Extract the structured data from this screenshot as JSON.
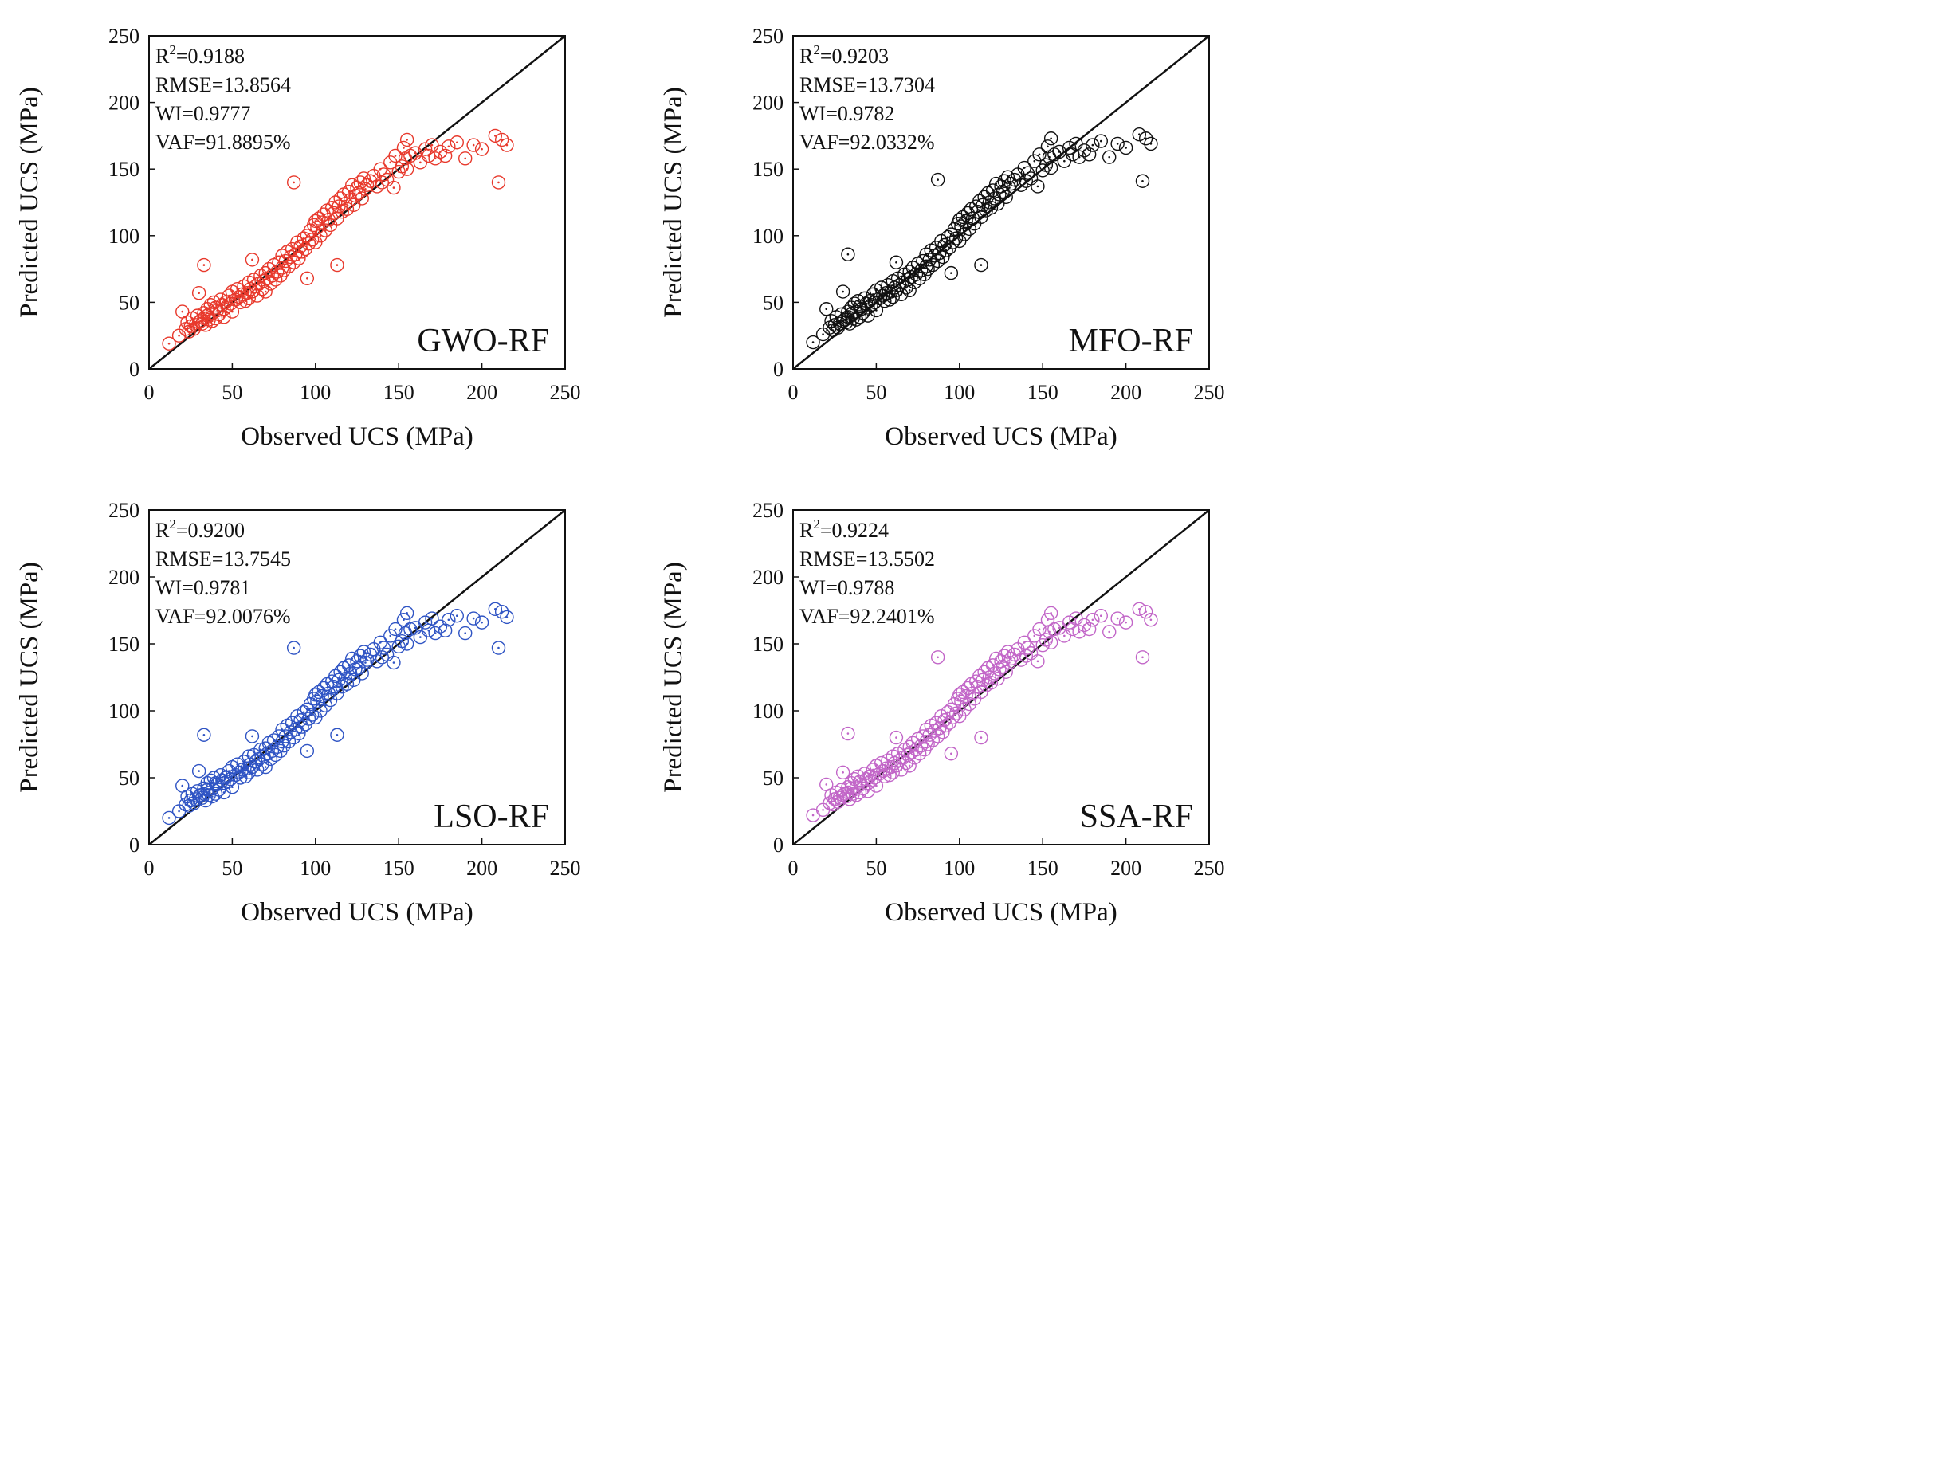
{
  "chart_data": [
    {
      "type": "scatter",
      "model": "GWO-RF",
      "color": "#e8392c",
      "xlabel": "Observed UCS (MPa)",
      "ylabel": "Predicted UCS (MPa)",
      "xlim": [
        0,
        250
      ],
      "ylim": [
        0,
        250
      ],
      "xticks": [
        "0",
        "50",
        "100",
        "150",
        "200",
        "250"
      ],
      "yticks": [
        "0",
        "50",
        "100",
        "150",
        "200",
        "250"
      ],
      "reference_line": "y = x",
      "stats": {
        "r2_prefix": "R",
        "r2_exp": "2",
        "r2_value": "=0.9188",
        "rmse": "RMSE=13.8564",
        "wi": "WI=0.9777",
        "vaf": "VAF=91.8895%"
      },
      "x": [
        12,
        18,
        20,
        22,
        23,
        24,
        25,
        26,
        27,
        28,
        29,
        30,
        30,
        31,
        32,
        33,
        33,
        34,
        35,
        35,
        36,
        37,
        38,
        38,
        39,
        40,
        40,
        41,
        42,
        43,
        44,
        45,
        45,
        46,
        47,
        48,
        49,
        50,
        50,
        52,
        53,
        54,
        55,
        56,
        57,
        58,
        59,
        60,
        60,
        61,
        62,
        63,
        64,
        65,
        66,
        67,
        68,
        69,
        70,
        70,
        71,
        72,
        73,
        74,
        75,
        76,
        77,
        78,
        79,
        80,
        80,
        81,
        82,
        83,
        84,
        85,
        86,
        87,
        88,
        89,
        90,
        91,
        92,
        93,
        94,
        95,
        96,
        97,
        98,
        99,
        100,
        100,
        101,
        102,
        103,
        104,
        105,
        106,
        107,
        108,
        109,
        110,
        111,
        112,
        113,
        114,
        115,
        116,
        117,
        118,
        119,
        120,
        121,
        122,
        123,
        124,
        125,
        126,
        127,
        128,
        129,
        130,
        131,
        133,
        135,
        137,
        139,
        140,
        141,
        143,
        145,
        147,
        148,
        150,
        152,
        153,
        154,
        155,
        155,
        157,
        160,
        163,
        166,
        168,
        170,
        172,
        175,
        178,
        180,
        185,
        190,
        195,
        200,
        208,
        210,
        212,
        215,
        33,
        87,
        113,
        95,
        62
      ],
      "y": [
        19,
        25,
        43,
        30,
        35,
        28,
        32,
        38,
        30,
        33,
        40,
        35,
        57,
        36,
        34,
        38,
        42,
        33,
        45,
        40,
        37,
        48,
        42,
        36,
        50,
        46,
        38,
        44,
        41,
        52,
        48,
        45,
        39,
        50,
        47,
        55,
        49,
        58,
        43,
        52,
        60,
        54,
        50,
        56,
        62,
        51,
        57,
        65,
        53,
        60,
        58,
        67,
        62,
        55,
        64,
        70,
        60,
        66,
        72,
        58,
        68,
        75,
        64,
        70,
        78,
        67,
        73,
        80,
        70,
        76,
        85,
        74,
        81,
        88,
        77,
        84,
        90,
        80,
        86,
        95,
        83,
        92,
        88,
        98,
        90,
        100,
        94,
        104,
        97,
        108,
        111,
        95,
        106,
        113,
        100,
        110,
        116,
        104,
        119,
        112,
        108,
        121,
        117,
        125,
        113,
        122,
        128,
        118,
        131,
        124,
        120,
        133,
        127,
        138,
        123,
        130,
        136,
        132,
        140,
        128,
        143,
        135,
        138,
        141,
        145,
        137,
        150,
        140,
        146,
        142,
        155,
        136,
        160,
        148,
        152,
        166,
        158,
        172,
        150,
        160,
        162,
        155,
        165,
        160,
        168,
        158,
        163,
        160,
        167,
        170,
        158,
        168,
        165,
        175,
        140,
        172,
        168,
        78,
        140,
        78,
        68,
        82
      ]
    },
    {
      "type": "scatter",
      "model": "MFO-RF",
      "color": "#111111",
      "xlabel": "Observed UCS (MPa)",
      "ylabel": "Predicted UCS (MPa)",
      "xlim": [
        0,
        250
      ],
      "ylim": [
        0,
        250
      ],
      "xticks": [
        "0",
        "50",
        "100",
        "150",
        "200",
        "250"
      ],
      "yticks": [
        "0",
        "50",
        "100",
        "150",
        "200",
        "250"
      ],
      "reference_line": "y = x",
      "stats": {
        "r2_prefix": "R",
        "r2_exp": "2",
        "r2_value": "=0.9203",
        "rmse": "RMSE=13.7304",
        "wi": "WI=0.9782",
        "vaf": "VAF=92.0332%"
      },
      "x": [
        12,
        18,
        20,
        22,
        23,
        24,
        25,
        26,
        27,
        28,
        29,
        30,
        30,
        31,
        32,
        33,
        33,
        34,
        35,
        35,
        36,
        37,
        38,
        38,
        39,
        40,
        40,
        41,
        42,
        43,
        44,
        45,
        45,
        46,
        47,
        48,
        49,
        50,
        50,
        52,
        53,
        54,
        55,
        56,
        57,
        58,
        59,
        60,
        60,
        61,
        62,
        63,
        64,
        65,
        66,
        67,
        68,
        69,
        70,
        70,
        71,
        72,
        73,
        74,
        75,
        76,
        77,
        78,
        79,
        80,
        80,
        81,
        82,
        83,
        84,
        85,
        86,
        87,
        88,
        89,
        90,
        91,
        92,
        93,
        94,
        95,
        96,
        97,
        98,
        99,
        100,
        100,
        101,
        102,
        103,
        104,
        105,
        106,
        107,
        108,
        109,
        110,
        111,
        112,
        113,
        114,
        115,
        116,
        117,
        118,
        119,
        120,
        121,
        122,
        123,
        124,
        125,
        126,
        127,
        128,
        129,
        130,
        131,
        133,
        135,
        137,
        139,
        140,
        141,
        143,
        145,
        147,
        148,
        150,
        152,
        153,
        154,
        155,
        155,
        157,
        160,
        163,
        166,
        168,
        170,
        172,
        175,
        178,
        180,
        185,
        190,
        195,
        200,
        208,
        210,
        212,
        215,
        33,
        87,
        113,
        95,
        62
      ],
      "y": [
        20,
        26,
        45,
        31,
        36,
        29,
        33,
        39,
        31,
        34,
        41,
        36,
        58,
        37,
        35,
        39,
        43,
        34,
        46,
        41,
        38,
        49,
        43,
        37,
        51,
        47,
        39,
        45,
        42,
        53,
        49,
        46,
        40,
        51,
        48,
        56,
        50,
        59,
        44,
        53,
        61,
        55,
        51,
        57,
        63,
        52,
        58,
        66,
        54,
        61,
        59,
        68,
        63,
        56,
        65,
        71,
        61,
        67,
        73,
        59,
        69,
        76,
        65,
        71,
        79,
        68,
        74,
        81,
        71,
        77,
        86,
        75,
        82,
        89,
        78,
        85,
        91,
        81,
        87,
        96,
        84,
        93,
        89,
        99,
        91,
        101,
        95,
        105,
        98,
        109,
        112,
        96,
        107,
        114,
        101,
        111,
        117,
        105,
        120,
        113,
        109,
        122,
        118,
        126,
        114,
        123,
        129,
        119,
        132,
        125,
        121,
        134,
        128,
        139,
        124,
        131,
        137,
        133,
        141,
        129,
        144,
        136,
        139,
        142,
        146,
        138,
        151,
        141,
        147,
        143,
        156,
        137,
        161,
        149,
        153,
        167,
        159,
        173,
        151,
        161,
        163,
        156,
        166,
        161,
        169,
        159,
        164,
        161,
        168,
        171,
        159,
        169,
        166,
        176,
        141,
        173,
        169,
        86,
        142,
        78,
        72,
        80
      ]
    },
    {
      "type": "scatter",
      "model": "LSO-RF",
      "color": "#2f54c4",
      "xlabel": "Observed UCS (MPa)",
      "ylabel": "Predicted UCS (MPa)",
      "xlim": [
        0,
        250
      ],
      "ylim": [
        0,
        250
      ],
      "xticks": [
        "0",
        "50",
        "100",
        "150",
        "200",
        "250"
      ],
      "yticks": [
        "0",
        "50",
        "100",
        "150",
        "200",
        "250"
      ],
      "reference_line": "y = x",
      "stats": {
        "r2_prefix": "R",
        "r2_exp": "2",
        "r2_value": "=0.9200",
        "rmse": "RMSE=13.7545",
        "wi": "WI=0.9781",
        "vaf": "VAF=92.0076%"
      },
      "x": [
        12,
        18,
        20,
        22,
        23,
        24,
        25,
        26,
        27,
        28,
        29,
        30,
        30,
        31,
        32,
        33,
        33,
        34,
        35,
        35,
        36,
        37,
        38,
        38,
        39,
        40,
        40,
        41,
        42,
        43,
        44,
        45,
        45,
        46,
        47,
        48,
        49,
        50,
        50,
        52,
        53,
        54,
        55,
        56,
        57,
        58,
        59,
        60,
        60,
        61,
        62,
        63,
        64,
        65,
        66,
        67,
        68,
        69,
        70,
        70,
        71,
        72,
        73,
        74,
        75,
        76,
        77,
        78,
        79,
        80,
        80,
        81,
        82,
        83,
        84,
        85,
        86,
        87,
        88,
        89,
        90,
        91,
        92,
        93,
        94,
        95,
        96,
        97,
        98,
        99,
        100,
        100,
        101,
        102,
        103,
        104,
        105,
        106,
        107,
        108,
        109,
        110,
        111,
        112,
        113,
        114,
        115,
        116,
        117,
        118,
        119,
        120,
        121,
        122,
        123,
        124,
        125,
        126,
        127,
        128,
        129,
        130,
        131,
        133,
        135,
        137,
        139,
        140,
        141,
        143,
        145,
        147,
        148,
        150,
        152,
        153,
        154,
        155,
        155,
        157,
        160,
        163,
        166,
        168,
        170,
        172,
        175,
        178,
        180,
        185,
        190,
        195,
        200,
        208,
        210,
        212,
        215,
        33,
        87,
        113,
        95,
        62
      ],
      "y": [
        20,
        25,
        44,
        30,
        36,
        29,
        33,
        38,
        31,
        34,
        40,
        36,
        55,
        37,
        35,
        38,
        42,
        33,
        46,
        41,
        37,
        48,
        42,
        36,
        50,
        46,
        38,
        45,
        41,
        52,
        48,
        46,
        39,
        50,
        47,
        55,
        49,
        58,
        43,
        52,
        60,
        54,
        50,
        56,
        62,
        51,
        57,
        66,
        54,
        60,
        58,
        67,
        62,
        56,
        64,
        71,
        60,
        66,
        72,
        58,
        68,
        76,
        64,
        70,
        78,
        67,
        73,
        81,
        70,
        77,
        86,
        74,
        81,
        89,
        77,
        84,
        91,
        80,
        86,
        96,
        83,
        93,
        88,
        99,
        90,
        101,
        94,
        105,
        97,
        109,
        112,
        95,
        107,
        114,
        100,
        111,
        117,
        104,
        120,
        113,
        108,
        122,
        118,
        126,
        113,
        123,
        129,
        118,
        132,
        124,
        120,
        134,
        128,
        139,
        123,
        131,
        137,
        132,
        141,
        128,
        144,
        136,
        138,
        142,
        146,
        137,
        151,
        140,
        147,
        142,
        156,
        136,
        161,
        148,
        152,
        168,
        158,
        173,
        150,
        161,
        162,
        155,
        166,
        160,
        169,
        158,
        163,
        160,
        168,
        171,
        158,
        169,
        166,
        176,
        147,
        174,
        170,
        82,
        147,
        82,
        70,
        81
      ]
    },
    {
      "type": "scatter",
      "model": "SSA-RF",
      "color": "#c266c8",
      "xlabel": "Observed UCS (MPa)",
      "ylabel": "Predicted UCS (MPa)",
      "xlim": [
        0,
        250
      ],
      "ylim": [
        0,
        250
      ],
      "xticks": [
        "0",
        "50",
        "100",
        "150",
        "200",
        "250"
      ],
      "yticks": [
        "0",
        "50",
        "100",
        "150",
        "200",
        "250"
      ],
      "reference_line": "y = x",
      "stats": {
        "r2_prefix": "R",
        "r2_exp": "2",
        "r2_value": "=0.9224",
        "rmse": "RMSE=13.5502",
        "wi": "WI=0.9788",
        "vaf": "VAF=92.2401%"
      },
      "x": [
        12,
        18,
        20,
        22,
        23,
        24,
        25,
        26,
        27,
        28,
        29,
        30,
        30,
        31,
        32,
        33,
        33,
        34,
        35,
        35,
        36,
        37,
        38,
        38,
        39,
        40,
        40,
        41,
        42,
        43,
        44,
        45,
        45,
        46,
        47,
        48,
        49,
        50,
        50,
        52,
        53,
        54,
        55,
        56,
        57,
        58,
        59,
        60,
        60,
        61,
        62,
        63,
        64,
        65,
        66,
        67,
        68,
        69,
        70,
        70,
        71,
        72,
        73,
        74,
        75,
        76,
        77,
        78,
        79,
        80,
        80,
        81,
        82,
        83,
        84,
        85,
        86,
        87,
        88,
        89,
        90,
        91,
        92,
        93,
        94,
        95,
        96,
        97,
        98,
        99,
        100,
        100,
        101,
        102,
        103,
        104,
        105,
        106,
        107,
        108,
        109,
        110,
        111,
        112,
        113,
        114,
        115,
        116,
        117,
        118,
        119,
        120,
        121,
        122,
        123,
        124,
        125,
        126,
        127,
        128,
        129,
        130,
        131,
        133,
        135,
        137,
        139,
        140,
        141,
        143,
        145,
        147,
        148,
        150,
        152,
        153,
        154,
        155,
        155,
        157,
        160,
        163,
        166,
        168,
        170,
        172,
        175,
        178,
        180,
        185,
        190,
        195,
        200,
        208,
        210,
        212,
        215,
        33,
        87,
        113,
        95,
        62
      ],
      "y": [
        22,
        26,
        45,
        31,
        37,
        30,
        34,
        39,
        32,
        35,
        41,
        37,
        54,
        38,
        36,
        39,
        43,
        34,
        46,
        42,
        38,
        49,
        43,
        37,
        51,
        47,
        39,
        45,
        42,
        53,
        49,
        46,
        40,
        51,
        48,
        56,
        50,
        59,
        44,
        53,
        61,
        55,
        51,
        57,
        63,
        52,
        58,
        66,
        54,
        61,
        59,
        68,
        63,
        56,
        65,
        71,
        61,
        67,
        73,
        59,
        69,
        76,
        65,
        71,
        79,
        68,
        74,
        81,
        71,
        77,
        86,
        75,
        82,
        89,
        78,
        85,
        91,
        81,
        87,
        96,
        84,
        93,
        89,
        99,
        91,
        101,
        95,
        105,
        98,
        109,
        112,
        96,
        107,
        114,
        101,
        111,
        117,
        105,
        120,
        113,
        109,
        122,
        118,
        126,
        114,
        123,
        129,
        119,
        132,
        125,
        121,
        134,
        128,
        139,
        124,
        131,
        137,
        133,
        141,
        129,
        144,
        136,
        139,
        142,
        146,
        138,
        151,
        141,
        147,
        143,
        156,
        137,
        161,
        149,
        153,
        168,
        159,
        173,
        151,
        161,
        162,
        156,
        166,
        161,
        169,
        159,
        164,
        161,
        168,
        171,
        159,
        169,
        166,
        176,
        140,
        174,
        168,
        83,
        140,
        80,
        68,
        80
      ]
    }
  ]
}
